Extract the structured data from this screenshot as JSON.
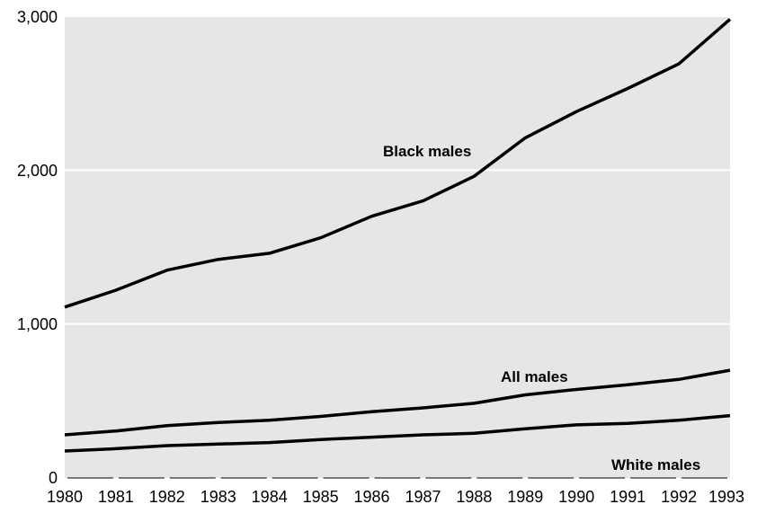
{
  "chart_data": {
    "type": "line",
    "title": "",
    "xlabel": "",
    "ylabel": "",
    "x": [
      1980,
      1981,
      1982,
      1983,
      1984,
      1985,
      1986,
      1987,
      1988,
      1989,
      1990,
      1991,
      1992,
      1993
    ],
    "x_tick_labels": [
      "1980",
      "1981",
      "1982",
      "1983",
      "1984",
      "1985",
      "1986",
      "1987",
      "1988",
      "1989",
      "1990",
      "1991",
      "1992",
      "1993"
    ],
    "ylim": [
      0,
      3000
    ],
    "y_ticks": [
      0,
      1000,
      2000,
      3000
    ],
    "y_tick_labels": [
      "0",
      "1,000",
      "2,000",
      "3,000"
    ],
    "grid": true,
    "legend": "none (inline series labels)",
    "colors": {
      "plot_background": "#e6e6e6",
      "line": "#000000",
      "grid": "#ffffff"
    },
    "series": [
      {
        "name": "Black males",
        "values": [
          1110,
          1220,
          1350,
          1420,
          1460,
          1560,
          1700,
          1800,
          1960,
          2210,
          2380,
          2530,
          2690,
          2980
        ]
      },
      {
        "name": "All males",
        "values": [
          280,
          305,
          340,
          360,
          375,
          400,
          430,
          455,
          485,
          540,
          575,
          605,
          640,
          700
        ]
      },
      {
        "name": "White males",
        "values": [
          175,
          190,
          210,
          220,
          230,
          250,
          265,
          280,
          290,
          320,
          345,
          355,
          375,
          405
        ]
      }
    ]
  }
}
